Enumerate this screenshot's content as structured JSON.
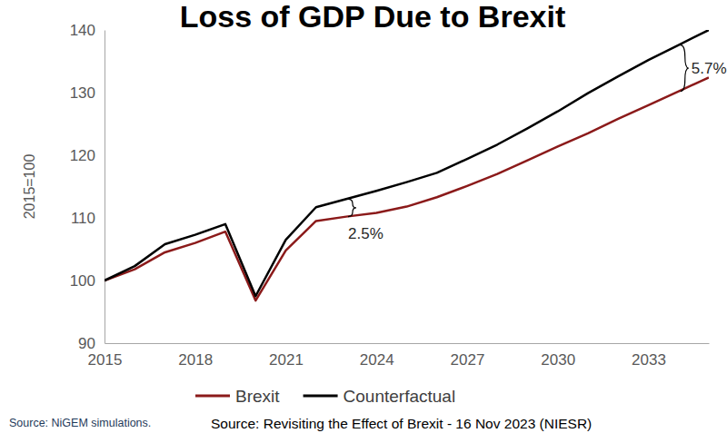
{
  "chart_data": {
    "type": "line",
    "title": "Loss of GDP Due to Brexit",
    "y_label": "2015=100",
    "x": [
      2015,
      2016,
      2017,
      2018,
      2019,
      2020,
      2021,
      2022,
      2023,
      2024,
      2025,
      2026,
      2027,
      2028,
      2029,
      2030,
      2031,
      2032,
      2033,
      2034,
      2035
    ],
    "series": [
      {
        "name": "Brexit",
        "color": "#8b1a1a",
        "values": [
          100,
          101.8,
          104.5,
          106,
          107.8,
          96.8,
          104.8,
          109.5,
          110.2,
          110.8,
          111.8,
          113.3,
          115.1,
          117,
          119.2,
          121.4,
          123.5,
          125.8,
          128,
          130.2,
          132.4
        ]
      },
      {
        "name": "Counterfactual",
        "color": "#000000",
        "values": [
          100,
          102.3,
          105.8,
          107.3,
          109,
          97.5,
          106.5,
          111.7,
          113,
          114.3,
          115.7,
          117.2,
          119.4,
          121.7,
          124.3,
          127,
          129.9,
          132.6,
          135.2,
          137.6,
          140
        ]
      }
    ],
    "xlim": [
      2015,
      2035
    ],
    "xticks": [
      2015,
      2018,
      2021,
      2024,
      2027,
      2030,
      2033
    ],
    "ylim": [
      90,
      140
    ],
    "yticks": [
      90,
      100,
      110,
      120,
      130,
      140
    ],
    "grid": false,
    "legend": "bottom",
    "annotations": [
      {
        "text": "2.5%",
        "x": 2023
      },
      {
        "text": "5.7%",
        "x": 2034
      }
    ],
    "source": [
      "Source: NiGEM simulations.",
      "Source: Revisiting the Effect of Brexit - 16 Nov 2023 (NIESR)"
    ]
  }
}
